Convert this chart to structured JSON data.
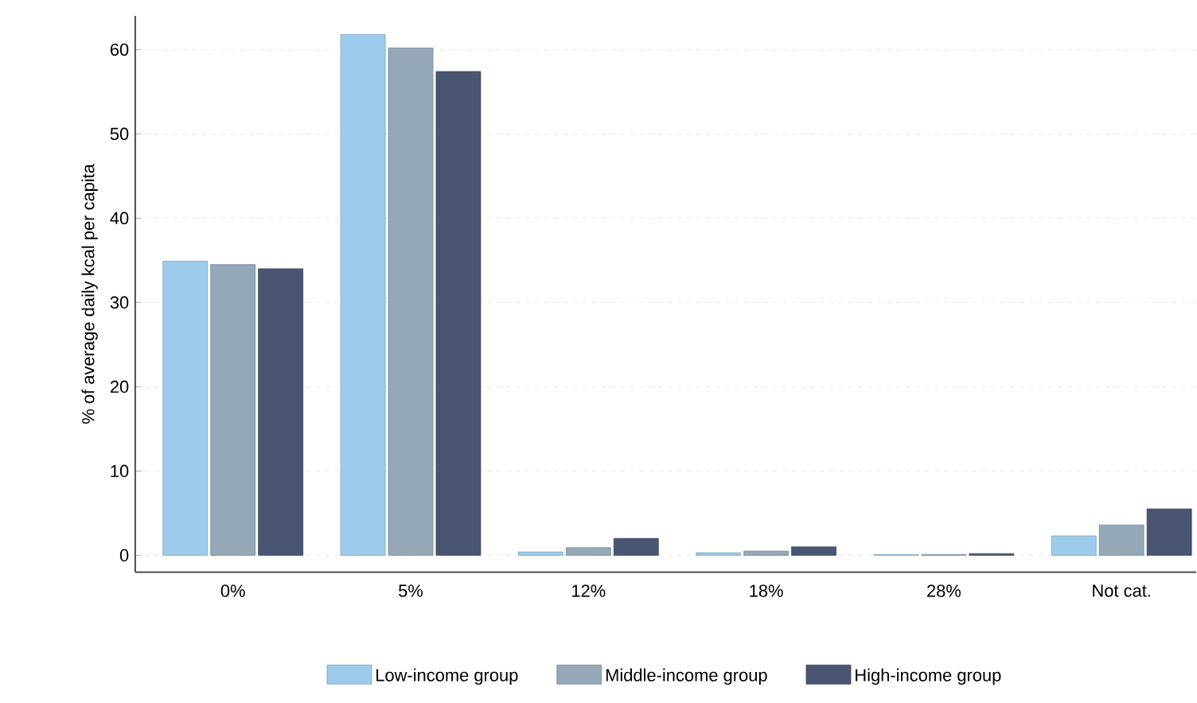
{
  "chart_data": {
    "type": "bar",
    "ylabel": "% of average daily kcal per capita",
    "categories": [
      "0%",
      "5%",
      "12%",
      "18%",
      "28%",
      "Not cat."
    ],
    "series": [
      {
        "name": "Low-income group",
        "color": "#9ccbeb",
        "values": [
          34.9,
          61.8,
          0.4,
          0.3,
          0.1,
          2.3
        ]
      },
      {
        "name": "Middle-income group",
        "color": "#95a8b8",
        "values": [
          34.5,
          60.2,
          0.9,
          0.5,
          0.1,
          3.6
        ]
      },
      {
        "name": "High-income group",
        "color": "#4a5572",
        "values": [
          34.0,
          57.4,
          2.0,
          1.0,
          0.2,
          5.5
        ]
      }
    ],
    "ylim": [
      -2,
      64
    ],
    "yticks": [
      0,
      10,
      20,
      30,
      40,
      50,
      60
    ],
    "grid": "y",
    "legend": "bottom"
  }
}
